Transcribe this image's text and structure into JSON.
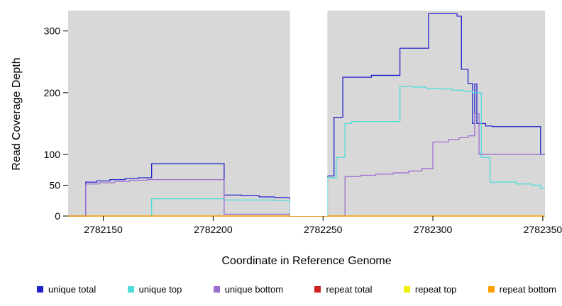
{
  "chart_data": {
    "type": "line",
    "subtype": "step-after",
    "title": "",
    "xlabel": "Coordinate in Reference Genome",
    "ylabel": "Read Coverage Depth",
    "xlim": [
      2782134,
      2782351
    ],
    "ylim": [
      0,
      333
    ],
    "x_ticks": [
      2782150,
      2782200,
      2782250,
      2782300,
      2782350
    ],
    "y_ticks": [
      0,
      50,
      100,
      200,
      300
    ],
    "grid": false,
    "panel_bg": "#d8d8d8",
    "masked_region": {
      "from": 2782235,
      "to": 2782252,
      "color": "#ffffff"
    },
    "legend_position": "bottom",
    "series": [
      {
        "name": "unique total",
        "color": "#2222cc",
        "points": [
          [
            2782134,
            0
          ],
          [
            2782142,
            55
          ],
          [
            2782147,
            57
          ],
          [
            2782153,
            59
          ],
          [
            2782160,
            61
          ],
          [
            2782166,
            62
          ],
          [
            2782172,
            85
          ],
          [
            2782205,
            34
          ],
          [
            2782213,
            33
          ],
          [
            2782221,
            31
          ],
          [
            2782228,
            30
          ],
          [
            2782235,
            0
          ],
          [
            2782252,
            65
          ],
          [
            2782255,
            160
          ],
          [
            2782259,
            225
          ],
          [
            2782272,
            228
          ],
          [
            2782285,
            272
          ],
          [
            2782298,
            328
          ],
          [
            2782311,
            324
          ],
          [
            2782313,
            238
          ],
          [
            2782316,
            215
          ],
          [
            2782318,
            150
          ],
          [
            2782319,
            214
          ],
          [
            2782320,
            150
          ],
          [
            2782324,
            146
          ],
          [
            2782327,
            145
          ],
          [
            2782349,
            100
          ],
          [
            2782351,
            100
          ]
        ]
      },
      {
        "name": "unique top",
        "color": "#4fdbdb",
        "points": [
          [
            2782134,
            0
          ],
          [
            2782172,
            28
          ],
          [
            2782205,
            26
          ],
          [
            2782228,
            25
          ],
          [
            2782235,
            0
          ],
          [
            2782252,
            62
          ],
          [
            2782256,
            95
          ],
          [
            2782260,
            150
          ],
          [
            2782263,
            153
          ],
          [
            2782285,
            210
          ],
          [
            2782291,
            209
          ],
          [
            2782297,
            207
          ],
          [
            2782303,
            206
          ],
          [
            2782309,
            204
          ],
          [
            2782314,
            202
          ],
          [
            2782318,
            200
          ],
          [
            2782322,
            95
          ],
          [
            2782326,
            55
          ],
          [
            2782338,
            52
          ],
          [
            2782345,
            50
          ],
          [
            2782349,
            45
          ],
          [
            2782351,
            45
          ]
        ]
      },
      {
        "name": "unique bottom",
        "color": "#9b6fd0",
        "points": [
          [
            2782134,
            0
          ],
          [
            2782142,
            52
          ],
          [
            2782148,
            54
          ],
          [
            2782155,
            56
          ],
          [
            2782162,
            58
          ],
          [
            2782170,
            59
          ],
          [
            2782205,
            3
          ],
          [
            2782235,
            0
          ],
          [
            2782260,
            64
          ],
          [
            2782267,
            66
          ],
          [
            2782274,
            68
          ],
          [
            2782282,
            70
          ],
          [
            2782289,
            73
          ],
          [
            2782295,
            77
          ],
          [
            2782300,
            120
          ],
          [
            2782307,
            124
          ],
          [
            2782312,
            127
          ],
          [
            2782316,
            130
          ],
          [
            2782319,
            166
          ],
          [
            2782321,
            100
          ],
          [
            2782351,
            100
          ]
        ]
      },
      {
        "name": "repeat total",
        "color": "#cc2222",
        "points": [
          [
            2782134,
            0
          ],
          [
            2782351,
            0
          ]
        ]
      },
      {
        "name": "repeat top",
        "color": "#f0f000",
        "points": [
          [
            2782134,
            0
          ],
          [
            2782351,
            0
          ]
        ]
      },
      {
        "name": "repeat bottom",
        "color": "#ff9f00",
        "points": [
          [
            2782134,
            0
          ],
          [
            2782351,
            0
          ]
        ]
      }
    ]
  }
}
